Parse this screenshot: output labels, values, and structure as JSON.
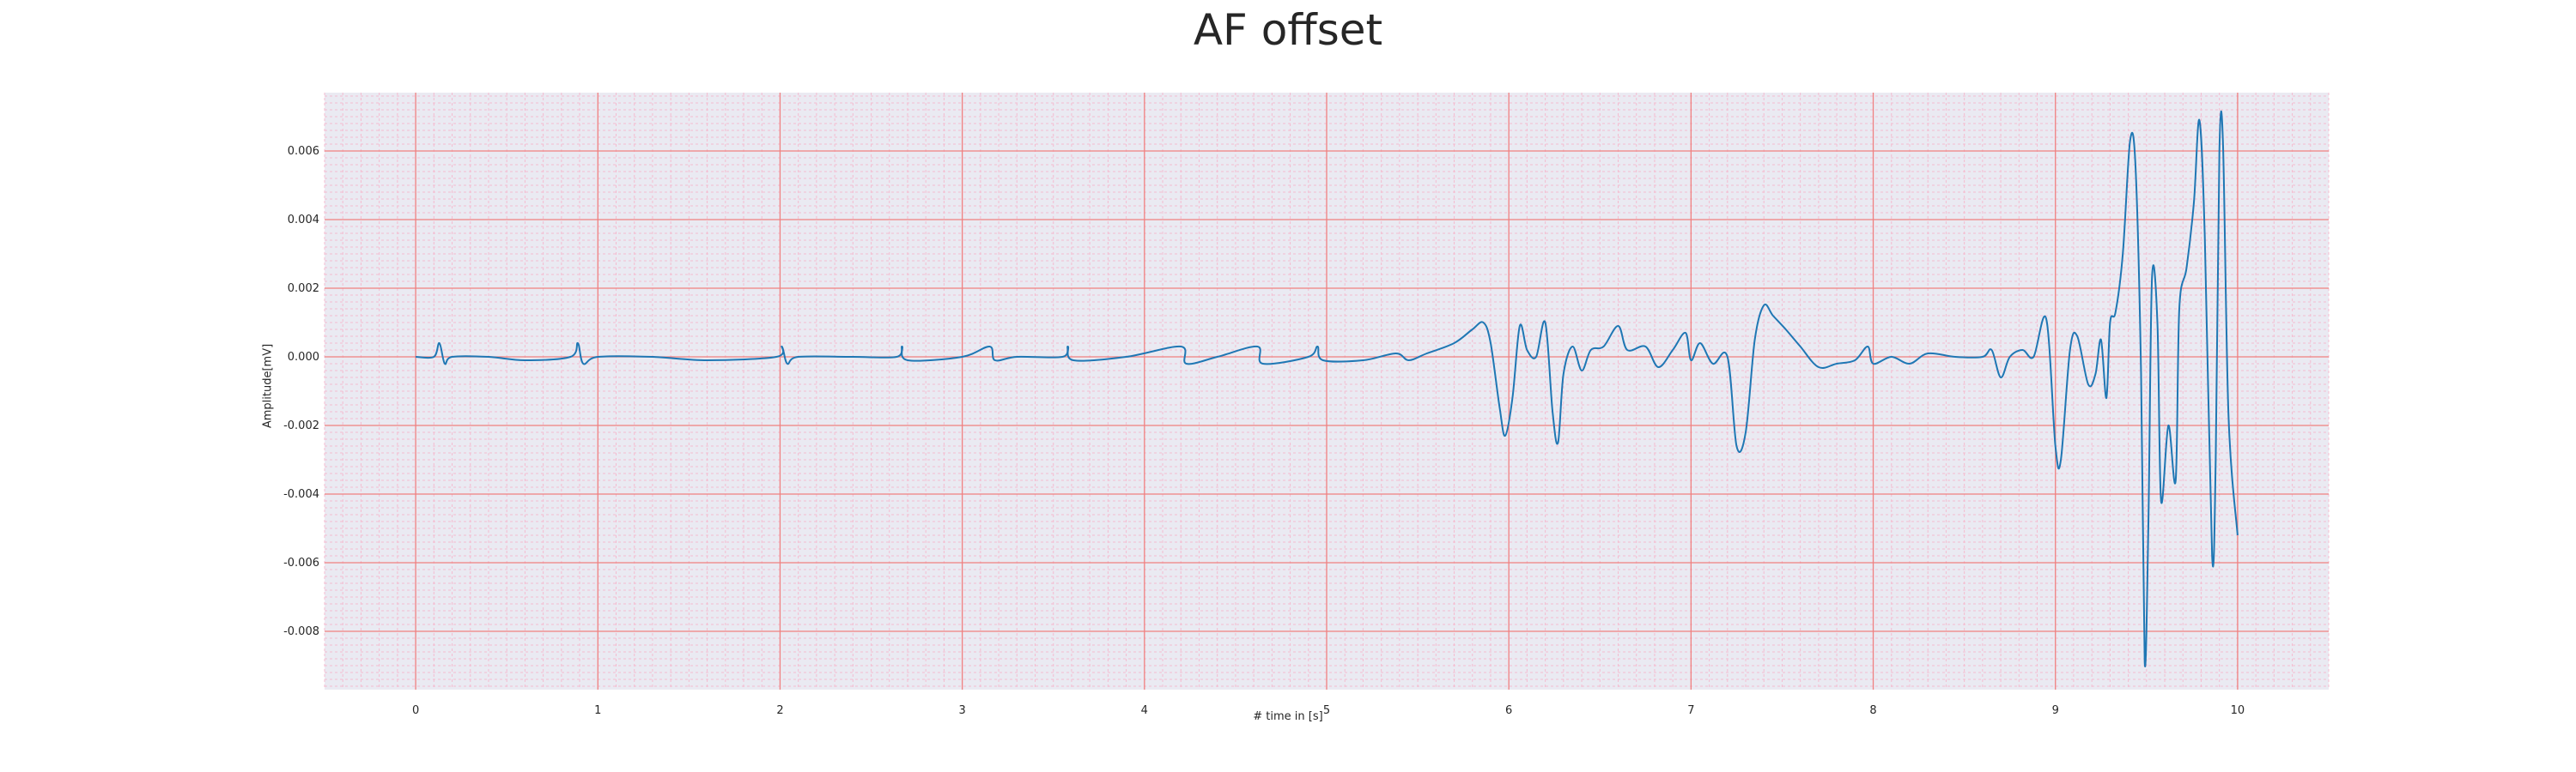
{
  "chart_data": {
    "type": "line",
    "title": "AF offset",
    "xlabel": "# time in [s]",
    "ylabel": "Amplitude[mV]",
    "xlim": [
      -0.5,
      10.5
    ],
    "ylim": [
      -0.0097,
      0.0077
    ],
    "xticks": [
      "0",
      "1",
      "2",
      "3",
      "4",
      "5",
      "6",
      "7",
      "8",
      "9",
      "10"
    ],
    "yticks": [
      "0.006",
      "0.004",
      "0.002",
      "0.000",
      "-0.002",
      "-0.004",
      "-0.006",
      "-0.008"
    ],
    "grid": true,
    "series": [
      {
        "color": "#1f77b4",
        "points": [
          [
            0,
            0
          ],
          [
            0.1,
            0
          ],
          [
            0.13,
            0.0004
          ],
          [
            0.16,
            -0.0002
          ],
          [
            0.2,
            0
          ],
          [
            0.4,
            0
          ],
          [
            0.6,
            -0.0001
          ],
          [
            0.85,
            0
          ],
          [
            0.89,
            0.0004
          ],
          [
            0.92,
            -0.0002
          ],
          [
            1.0,
            0
          ],
          [
            1.3,
            0
          ],
          [
            1.6,
            -0.0001
          ],
          [
            1.98,
            0
          ],
          [
            2.01,
            0.0003
          ],
          [
            2.04,
            -0.0002
          ],
          [
            2.1,
            0
          ],
          [
            2.4,
            0
          ],
          [
            2.64,
            0
          ],
          [
            2.67,
            0.0003
          ],
          [
            2.7,
            -0.0001
          ],
          [
            3.0,
            0
          ],
          [
            3.15,
            0.0003
          ],
          [
            3.18,
            -0.0001
          ],
          [
            3.3,
            0
          ],
          [
            3.55,
            0
          ],
          [
            3.58,
            0.0003
          ],
          [
            3.61,
            -0.0001
          ],
          [
            3.9,
            0
          ],
          [
            4.2,
            0.0003
          ],
          [
            4.23,
            -0.0002
          ],
          [
            4.4,
            0
          ],
          [
            4.62,
            0.0003
          ],
          [
            4.65,
            -0.0002
          ],
          [
            4.9,
            0
          ],
          [
            4.95,
            0.0003
          ],
          [
            4.98,
            -0.0001
          ],
          [
            5.2,
            -0.0001
          ],
          [
            5.38,
            0.0001
          ],
          [
            5.45,
            -0.0001
          ],
          [
            5.55,
            0.0001
          ],
          [
            5.7,
            0.0004
          ],
          [
            5.8,
            0.0008
          ],
          [
            5.86,
            0.001
          ],
          [
            5.9,
            0.0004
          ],
          [
            5.95,
            -0.0015
          ],
          [
            5.98,
            -0.0023
          ],
          [
            6.02,
            -0.0012
          ],
          [
            6.06,
            0.0009
          ],
          [
            6.1,
            0.0002
          ],
          [
            6.15,
            0.0
          ],
          [
            6.2,
            0.001
          ],
          [
            6.24,
            -0.0016
          ],
          [
            6.27,
            -0.0025
          ],
          [
            6.3,
            -0.0005
          ],
          [
            6.35,
            0.0003
          ],
          [
            6.4,
            -0.0004
          ],
          [
            6.45,
            0.0002
          ],
          [
            6.52,
            0.0003
          ],
          [
            6.6,
            0.0009
          ],
          [
            6.65,
            0.0002
          ],
          [
            6.75,
            0.0003
          ],
          [
            6.82,
            -0.0003
          ],
          [
            6.9,
            0.0002
          ],
          [
            6.97,
            0.0007
          ],
          [
            7.0,
            -0.0001
          ],
          [
            7.05,
            0.0004
          ],
          [
            7.12,
            -0.0002
          ],
          [
            7.2,
            0
          ],
          [
            7.25,
            -0.0026
          ],
          [
            7.3,
            -0.0022
          ],
          [
            7.35,
            0.0005
          ],
          [
            7.4,
            0.0015
          ],
          [
            7.45,
            0.0012
          ],
          [
            7.52,
            0.0008
          ],
          [
            7.6,
            0.0003
          ],
          [
            7.7,
            -0.0003
          ],
          [
            7.8,
            -0.0002
          ],
          [
            7.9,
            -0.0001
          ],
          [
            7.97,
            0.0003
          ],
          [
            8.0,
            -0.0002
          ],
          [
            8.1,
            0.0
          ],
          [
            8.2,
            -0.0002
          ],
          [
            8.3,
            0.0001
          ],
          [
            8.45,
            0.0
          ],
          [
            8.6,
            0.0
          ],
          [
            8.65,
            0.0002
          ],
          [
            8.7,
            -0.0006
          ],
          [
            8.75,
            0.0
          ],
          [
            8.82,
            0.0002
          ],
          [
            8.88,
            0.0
          ],
          [
            8.95,
            0.0011
          ],
          [
            9.0,
            -0.0026
          ],
          [
            9.03,
            -0.003
          ],
          [
            9.08,
            0.0002
          ],
          [
            9.12,
            0.0006
          ],
          [
            9.18,
            -0.0008
          ],
          [
            9.22,
            -0.0005
          ],
          [
            9.25,
            0.0005
          ],
          [
            9.28,
            -0.0012
          ],
          [
            9.3,
            0.001
          ],
          [
            9.33,
            0.0013
          ],
          [
            9.37,
            0.003
          ],
          [
            9.41,
            0.0063
          ],
          [
            9.44,
            0.0055
          ],
          [
            9.47,
            -0.0005
          ],
          [
            9.49,
            -0.0089
          ],
          [
            9.51,
            -0.005
          ],
          [
            9.53,
            0.0023
          ],
          [
            9.56,
            0.001
          ],
          [
            9.58,
            -0.0042
          ],
          [
            9.62,
            -0.002
          ],
          [
            9.66,
            -0.0036
          ],
          [
            9.68,
            0.0014
          ],
          [
            9.72,
            0.0026
          ],
          [
            9.76,
            0.0045
          ],
          [
            9.79,
            0.0069
          ],
          [
            9.82,
            0.0035
          ],
          [
            9.86,
            -0.0058
          ],
          [
            9.88,
            -0.003
          ],
          [
            9.9,
            0.006
          ],
          [
            9.92,
            0.0062
          ],
          [
            9.95,
            -0.0017
          ],
          [
            10.0,
            -0.0052
          ]
        ]
      }
    ],
    "colors": {
      "axes_bg": "#eaeaf2",
      "major_grid": "#f08080",
      "minor_grid": "#f4bcd0",
      "line": "#1f77b4",
      "text": "#262626"
    }
  }
}
